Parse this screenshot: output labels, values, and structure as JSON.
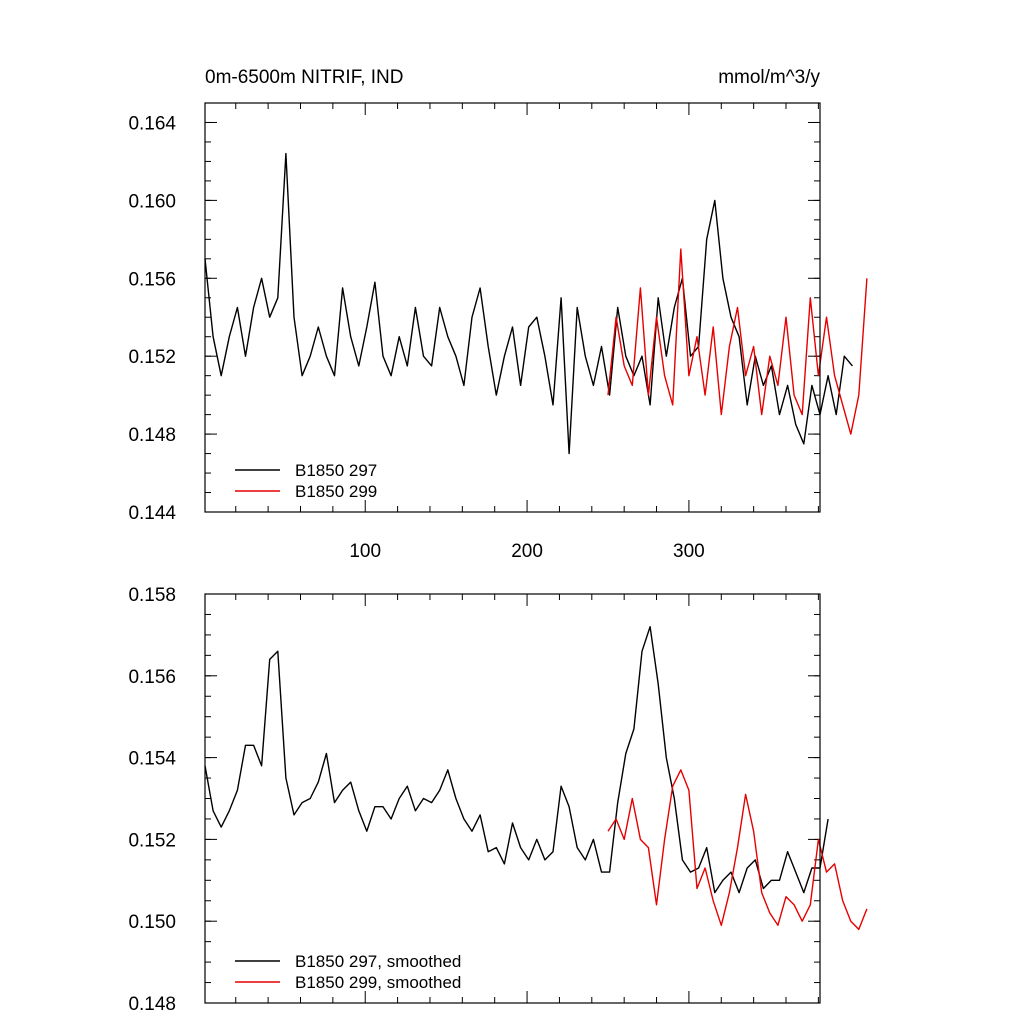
{
  "chart_data": [
    {
      "type": "line",
      "title_left": "0m-6500m NITRIF, IND",
      "title_right": "mmol/m^3/y",
      "xlim": [
        1,
        381
      ],
      "ylim": [
        0.144,
        0.165
      ],
      "yticks": [
        0.144,
        0.148,
        0.152,
        0.156,
        0.16,
        0.164
      ],
      "ytick_labels": [
        "0.144",
        "0.148",
        "0.152",
        "0.156",
        "0.160",
        "0.164"
      ],
      "xticks": [
        100,
        200,
        300
      ],
      "xtick_labels": [
        "100",
        "200",
        "300"
      ],
      "legend": [
        "B1850 297",
        "B1850 299"
      ],
      "series": [
        {
          "name": "B1850 297",
          "color": "#000000",
          "x_start": 1,
          "x_step": 5,
          "values": [
            0.157,
            0.153,
            0.151,
            0.153,
            0.1545,
            0.152,
            0.1545,
            0.156,
            0.154,
            0.155,
            0.1624,
            0.154,
            0.151,
            0.152,
            0.1535,
            0.152,
            0.151,
            0.1555,
            0.153,
            0.1515,
            0.1535,
            0.1558,
            0.152,
            0.151,
            0.153,
            0.1515,
            0.1545,
            0.152,
            0.1515,
            0.1545,
            0.153,
            0.152,
            0.1505,
            0.154,
            0.1555,
            0.1525,
            0.15,
            0.152,
            0.1535,
            0.1505,
            0.1535,
            0.154,
            0.152,
            0.1495,
            0.155,
            0.147,
            0.1545,
            0.152,
            0.1505,
            0.1525,
            0.15,
            0.1545,
            0.152,
            0.151,
            0.152,
            0.1495,
            0.155,
            0.152,
            0.1545,
            0.156,
            0.152,
            0.1525,
            0.158,
            0.16,
            0.156,
            0.154,
            0.153,
            0.1495,
            0.152,
            0.1505,
            0.1515,
            0.149,
            0.1505,
            0.1485,
            0.1475,
            0.1505,
            0.149,
            0.151,
            0.149,
            0.152,
            0.1515
          ]
        },
        {
          "name": "B1850 299",
          "color": "#e60000",
          "x_start": 250,
          "x_step": 5,
          "values": [
            0.15,
            0.154,
            0.1515,
            0.1505,
            0.1555,
            0.15,
            0.154,
            0.151,
            0.1495,
            0.1575,
            0.151,
            0.153,
            0.15,
            0.1535,
            0.149,
            0.1525,
            0.1545,
            0.151,
            0.1525,
            0.149,
            0.152,
            0.1505,
            0.154,
            0.15,
            0.149,
            0.155,
            0.151,
            0.154,
            0.151,
            0.1495,
            0.148,
            0.15,
            0.156
          ]
        }
      ]
    },
    {
      "type": "line",
      "xlim": [
        1,
        381
      ],
      "ylim": [
        0.148,
        0.158
      ],
      "yticks": [
        0.148,
        0.15,
        0.152,
        0.154,
        0.156,
        0.158
      ],
      "ytick_labels": [
        "0.148",
        "0.150",
        "0.152",
        "0.154",
        "0.156",
        "0.158"
      ],
      "xticks": [
        100,
        200,
        300
      ],
      "legend": [
        "B1850 297, smoothed",
        "B1850 299, smoothed"
      ],
      "series": [
        {
          "name": "B1850 297, smoothed",
          "color": "#000000",
          "x_start": 1,
          "x_step": 5,
          "values": [
            0.1538,
            0.1527,
            0.1523,
            0.1527,
            0.1532,
            0.1543,
            0.1543,
            0.1538,
            0.1564,
            0.1566,
            0.1535,
            0.1526,
            0.1529,
            0.153,
            0.1534,
            0.1541,
            0.1529,
            0.1532,
            0.1534,
            0.1527,
            0.1522,
            0.1528,
            0.1528,
            0.1525,
            0.153,
            0.1533,
            0.1527,
            0.153,
            0.1529,
            0.1532,
            0.1537,
            0.153,
            0.1525,
            0.1522,
            0.1526,
            0.1517,
            0.1518,
            0.1514,
            0.1524,
            0.1518,
            0.1515,
            0.152,
            0.1515,
            0.1517,
            0.1533,
            0.1528,
            0.1518,
            0.1515,
            0.152,
            0.1512,
            0.1512,
            0.1529,
            0.1541,
            0.1547,
            0.1566,
            0.1572,
            0.1558,
            0.154,
            0.153,
            0.1515,
            0.1512,
            0.1513,
            0.1518,
            0.1507,
            0.151,
            0.1512,
            0.1507,
            0.1513,
            0.1515,
            0.1508,
            0.151,
            0.151,
            0.1517,
            0.1512,
            0.1507,
            0.1513,
            0.1513,
            0.1525
          ]
        },
        {
          "name": "B1850 299, smoothed",
          "color": "#e60000",
          "x_start": 250,
          "x_step": 5,
          "values": [
            0.1522,
            0.1525,
            0.152,
            0.153,
            0.152,
            0.1518,
            0.1504,
            0.152,
            0.1533,
            0.1537,
            0.1532,
            0.1508,
            0.1513,
            0.1505,
            0.1499,
            0.1507,
            0.1518,
            0.1531,
            0.1522,
            0.1507,
            0.1502,
            0.1499,
            0.1506,
            0.1504,
            0.15,
            0.1504,
            0.152,
            0.1512,
            0.1514,
            0.1505,
            0.15,
            0.1498,
            0.1503
          ]
        }
      ]
    }
  ]
}
